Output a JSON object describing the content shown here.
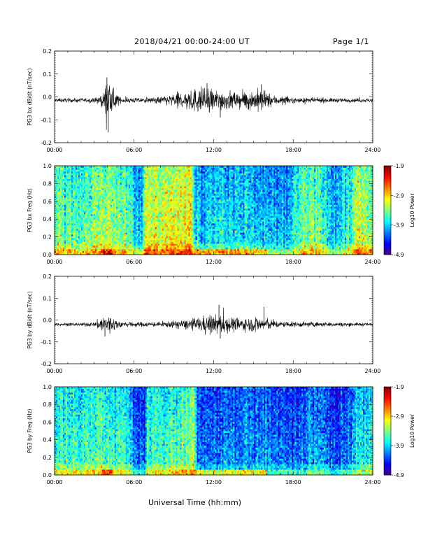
{
  "header": {
    "title": "2018/04/21  00:00-24:00 UT",
    "page": "Page 1/1"
  },
  "xaxis_label": "Universal Time (hh:mm)",
  "chart_data": [
    {
      "type": "line",
      "ylabel": "PG3 bx dB/dt (nT/sec)",
      "xlim_hours": [
        0,
        24
      ],
      "xticks": [
        "00:00",
        "06:00",
        "12:00",
        "18:00",
        "24:00"
      ],
      "ylim": [
        -0.2,
        0.2
      ],
      "yticks": [
        "-0.2",
        "-0.1",
        "0.0",
        "0.1",
        "0.2"
      ],
      "baseline": -0.015,
      "activity_envelope": [
        {
          "x": 0,
          "amp": 0.008
        },
        {
          "x": 3.0,
          "amp": 0.008
        },
        {
          "x": 3.7,
          "amp": 0.03
        },
        {
          "x": 4.0,
          "amp": 0.1
        },
        {
          "x": 4.3,
          "amp": 0.05
        },
        {
          "x": 5.0,
          "amp": 0.01
        },
        {
          "x": 7.5,
          "amp": 0.01
        },
        {
          "x": 9.0,
          "amp": 0.025
        },
        {
          "x": 10.0,
          "amp": 0.04
        },
        {
          "x": 11.0,
          "amp": 0.05
        },
        {
          "x": 12.5,
          "amp": 0.04
        },
        {
          "x": 14.0,
          "amp": 0.03
        },
        {
          "x": 15.5,
          "amp": 0.045
        },
        {
          "x": 16.5,
          "amp": 0.02
        },
        {
          "x": 18.0,
          "amp": 0.01
        },
        {
          "x": 24,
          "amp": 0.007
        }
      ],
      "peaks": [
        {
          "x": 3.95,
          "y": 0.085
        },
        {
          "x": 4.05,
          "y": -0.155
        },
        {
          "x": 12.5,
          "y": -0.09
        },
        {
          "x": 11.5,
          "y": 0.06
        },
        {
          "x": 15.6,
          "y": 0.055
        }
      ]
    },
    {
      "type": "heatmap",
      "ylabel": "PG3 bx Freq (Hz)",
      "xlim_hours": [
        0,
        24
      ],
      "xticks": [
        "00:00",
        "06:00",
        "12:00",
        "18:00",
        "24:00"
      ],
      "ylim": [
        0.0,
        1.0
      ],
      "yticks": [
        "0.0",
        "0.2",
        "0.4",
        "0.6",
        "0.8",
        "1.0"
      ],
      "colorbar": {
        "label": "Log10 Power",
        "ticks": [
          "-1.9",
          "-2.9",
          "-3.9",
          "-4.9"
        ],
        "range": [
          -4.9,
          -1.9
        ]
      },
      "time_profile": [
        {
          "x": 0,
          "p": -3.45
        },
        {
          "x": 3.0,
          "p": -3.4
        },
        {
          "x": 4.0,
          "p": -3.2
        },
        {
          "x": 5.8,
          "p": -3.35
        },
        {
          "x": 6.0,
          "p": -3.9
        },
        {
          "x": 6.6,
          "p": -3.9
        },
        {
          "x": 6.8,
          "p": -3.1
        },
        {
          "x": 8.0,
          "p": -3.05
        },
        {
          "x": 10.3,
          "p": -2.95
        },
        {
          "x": 10.7,
          "p": -3.85
        },
        {
          "x": 12.0,
          "p": -3.75
        },
        {
          "x": 15.0,
          "p": -3.8
        },
        {
          "x": 17.5,
          "p": -3.95
        },
        {
          "x": 19.0,
          "p": -3.3
        },
        {
          "x": 20.0,
          "p": -3.45
        },
        {
          "x": 21.0,
          "p": -3.85
        },
        {
          "x": 22.0,
          "p": -3.55
        },
        {
          "x": 23.0,
          "p": -3.1
        },
        {
          "x": 24,
          "p": -3.3
        }
      ]
    },
    {
      "type": "line",
      "ylabel": "PG3 by dB/dt (nT/sec)",
      "xlim_hours": [
        0,
        24
      ],
      "xticks": [
        "00:00",
        "06:00",
        "12:00",
        "18:00",
        "24:00"
      ],
      "ylim": [
        -0.2,
        0.2
      ],
      "yticks": [
        "-0.2",
        "-0.1",
        "0.0",
        "0.1",
        "0.2"
      ],
      "baseline": -0.02,
      "activity_envelope": [
        {
          "x": 0,
          "amp": 0.006
        },
        {
          "x": 3.0,
          "amp": 0.008
        },
        {
          "x": 3.6,
          "amp": 0.035
        },
        {
          "x": 4.0,
          "amp": 0.045
        },
        {
          "x": 4.5,
          "amp": 0.025
        },
        {
          "x": 5.2,
          "amp": 0.01
        },
        {
          "x": 8.0,
          "amp": 0.01
        },
        {
          "x": 10.0,
          "amp": 0.02
        },
        {
          "x": 11.5,
          "amp": 0.035
        },
        {
          "x": 12.5,
          "amp": 0.04
        },
        {
          "x": 14.0,
          "amp": 0.025
        },
        {
          "x": 15.5,
          "amp": 0.03
        },
        {
          "x": 17.0,
          "amp": 0.012
        },
        {
          "x": 24,
          "amp": 0.006
        }
      ],
      "peaks": [
        {
          "x": 12.4,
          "y": 0.07
        },
        {
          "x": 15.8,
          "y": 0.06
        },
        {
          "x": 12.5,
          "y": -0.085
        },
        {
          "x": 3.8,
          "y": -0.075
        }
      ]
    },
    {
      "type": "heatmap",
      "ylabel": "PG3 by Freq (Hz)",
      "xlim_hours": [
        0,
        24
      ],
      "xticks": [
        "00:00",
        "06:00",
        "12:00",
        "18:00",
        "24:00"
      ],
      "ylim": [
        0.0,
        1.0
      ],
      "yticks": [
        "0.0",
        "0.2",
        "0.4",
        "0.6",
        "0.8",
        "1.0"
      ],
      "colorbar": {
        "label": "Log10 Power",
        "ticks": [
          "-1.9",
          "-2.9",
          "-3.9",
          "-4.9"
        ],
        "range": [
          -4.9,
          -1.9
        ]
      },
      "time_profile": [
        {
          "x": 0,
          "p": -3.55
        },
        {
          "x": 3.5,
          "p": -3.55
        },
        {
          "x": 4.5,
          "p": -3.5
        },
        {
          "x": 5.8,
          "p": -3.7
        },
        {
          "x": 6.0,
          "p": -4.25
        },
        {
          "x": 6.8,
          "p": -4.2
        },
        {
          "x": 7.0,
          "p": -3.55
        },
        {
          "x": 9.0,
          "p": -3.5
        },
        {
          "x": 10.5,
          "p": -3.25
        },
        {
          "x": 10.8,
          "p": -4.15
        },
        {
          "x": 13.0,
          "p": -4.05
        },
        {
          "x": 16.0,
          "p": -4.05
        },
        {
          "x": 18.0,
          "p": -4.2
        },
        {
          "x": 19.5,
          "p": -3.9
        },
        {
          "x": 21.5,
          "p": -4.3
        },
        {
          "x": 23.0,
          "p": -3.7
        },
        {
          "x": 24,
          "p": -3.7
        }
      ]
    }
  ]
}
